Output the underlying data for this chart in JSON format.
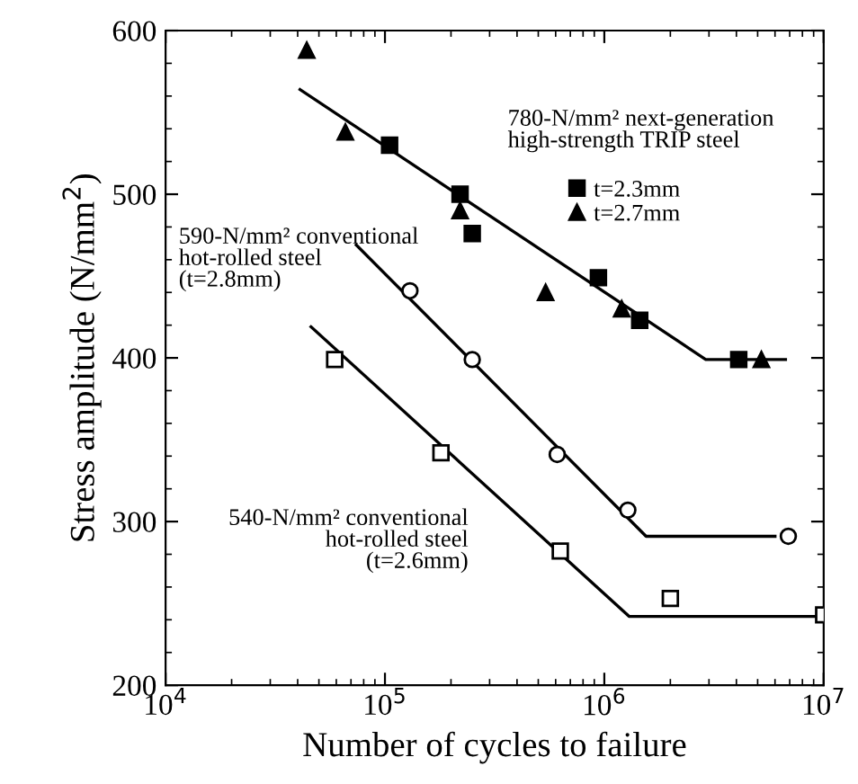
{
  "chart_data": {
    "type": "scatter",
    "xlabel": "Number of cycles to failure",
    "ylabel": "Stress amplitude (N/mm$^{2}$)",
    "log": "x",
    "xlim": [
      10000,
      10000000
    ],
    "xticks": [
      {
        "value": 10000,
        "label": "10$^{4}$"
      },
      {
        "value": 100000,
        "label": "10$^{5}$"
      },
      {
        "value": 1000000,
        "label": "10$^{6}$"
      },
      {
        "value": 10000000,
        "label": "10$^{7}$"
      }
    ],
    "ylim": [
      200,
      600
    ],
    "yticks": [
      200,
      300,
      400,
      500,
      600
    ],
    "grid": false,
    "legend": "top right",
    "series": [
      {
        "name": "t=2.3mm",
        "color": "#000000",
        "marker": "square",
        "x": [
          105000,
          220000,
          250000,
          940000,
          1450000,
          4100000
        ],
        "values": [
          530,
          500,
          476,
          449,
          423,
          399
        ]
      },
      {
        "name": "t=2.7mm",
        "color": "#000000",
        "marker": "triangle",
        "x": [
          44000,
          66000,
          220000,
          540000,
          1200000,
          5200000
        ],
        "values": [
          588,
          538,
          490,
          440,
          430,
          399
        ]
      },
      {
        "color": "#000000",
        "marker": "circle",
        "x": [
          130000,
          250000,
          610000,
          1280000,
          6900000
        ],
        "values": [
          441,
          399,
          341,
          307,
          291
        ]
      },
      {
        "color": "#000000",
        "marker": "square",
        "x": [
          59000,
          180000,
          630000,
          2000000,
          10000000
        ],
        "values": [
          399,
          342,
          282,
          253,
          243
        ]
      },
      {
        "type": "line",
        "color": "#000000",
        "marker": "none",
        "x": [
          41000,
          2900000,
          6700000
        ],
        "values": [
          564,
          399,
          399
        ]
      },
      {
        "type": "line",
        "color": "#000000",
        "marker": "none",
        "x": [
          74000,
          1550000,
          6000000
        ],
        "values": [
          469,
          291,
          291
        ]
      },
      {
        "type": "line",
        "color": "#000000",
        "marker": "none",
        "x": [
          46000,
          1300000,
          10000000
        ],
        "values": [
          419,
          242,
          242
        ]
      }
    ],
    "annotations": [
      "780-N/mm² next-generation\nhigh-strength TRIP steel",
      "590-N/mm² conventional\nhot-rolled steel\n(t=2.8mm)",
      "540-N/mm² conventional\nhot-rolled steel\n(t=2.6mm)"
    ]
  }
}
